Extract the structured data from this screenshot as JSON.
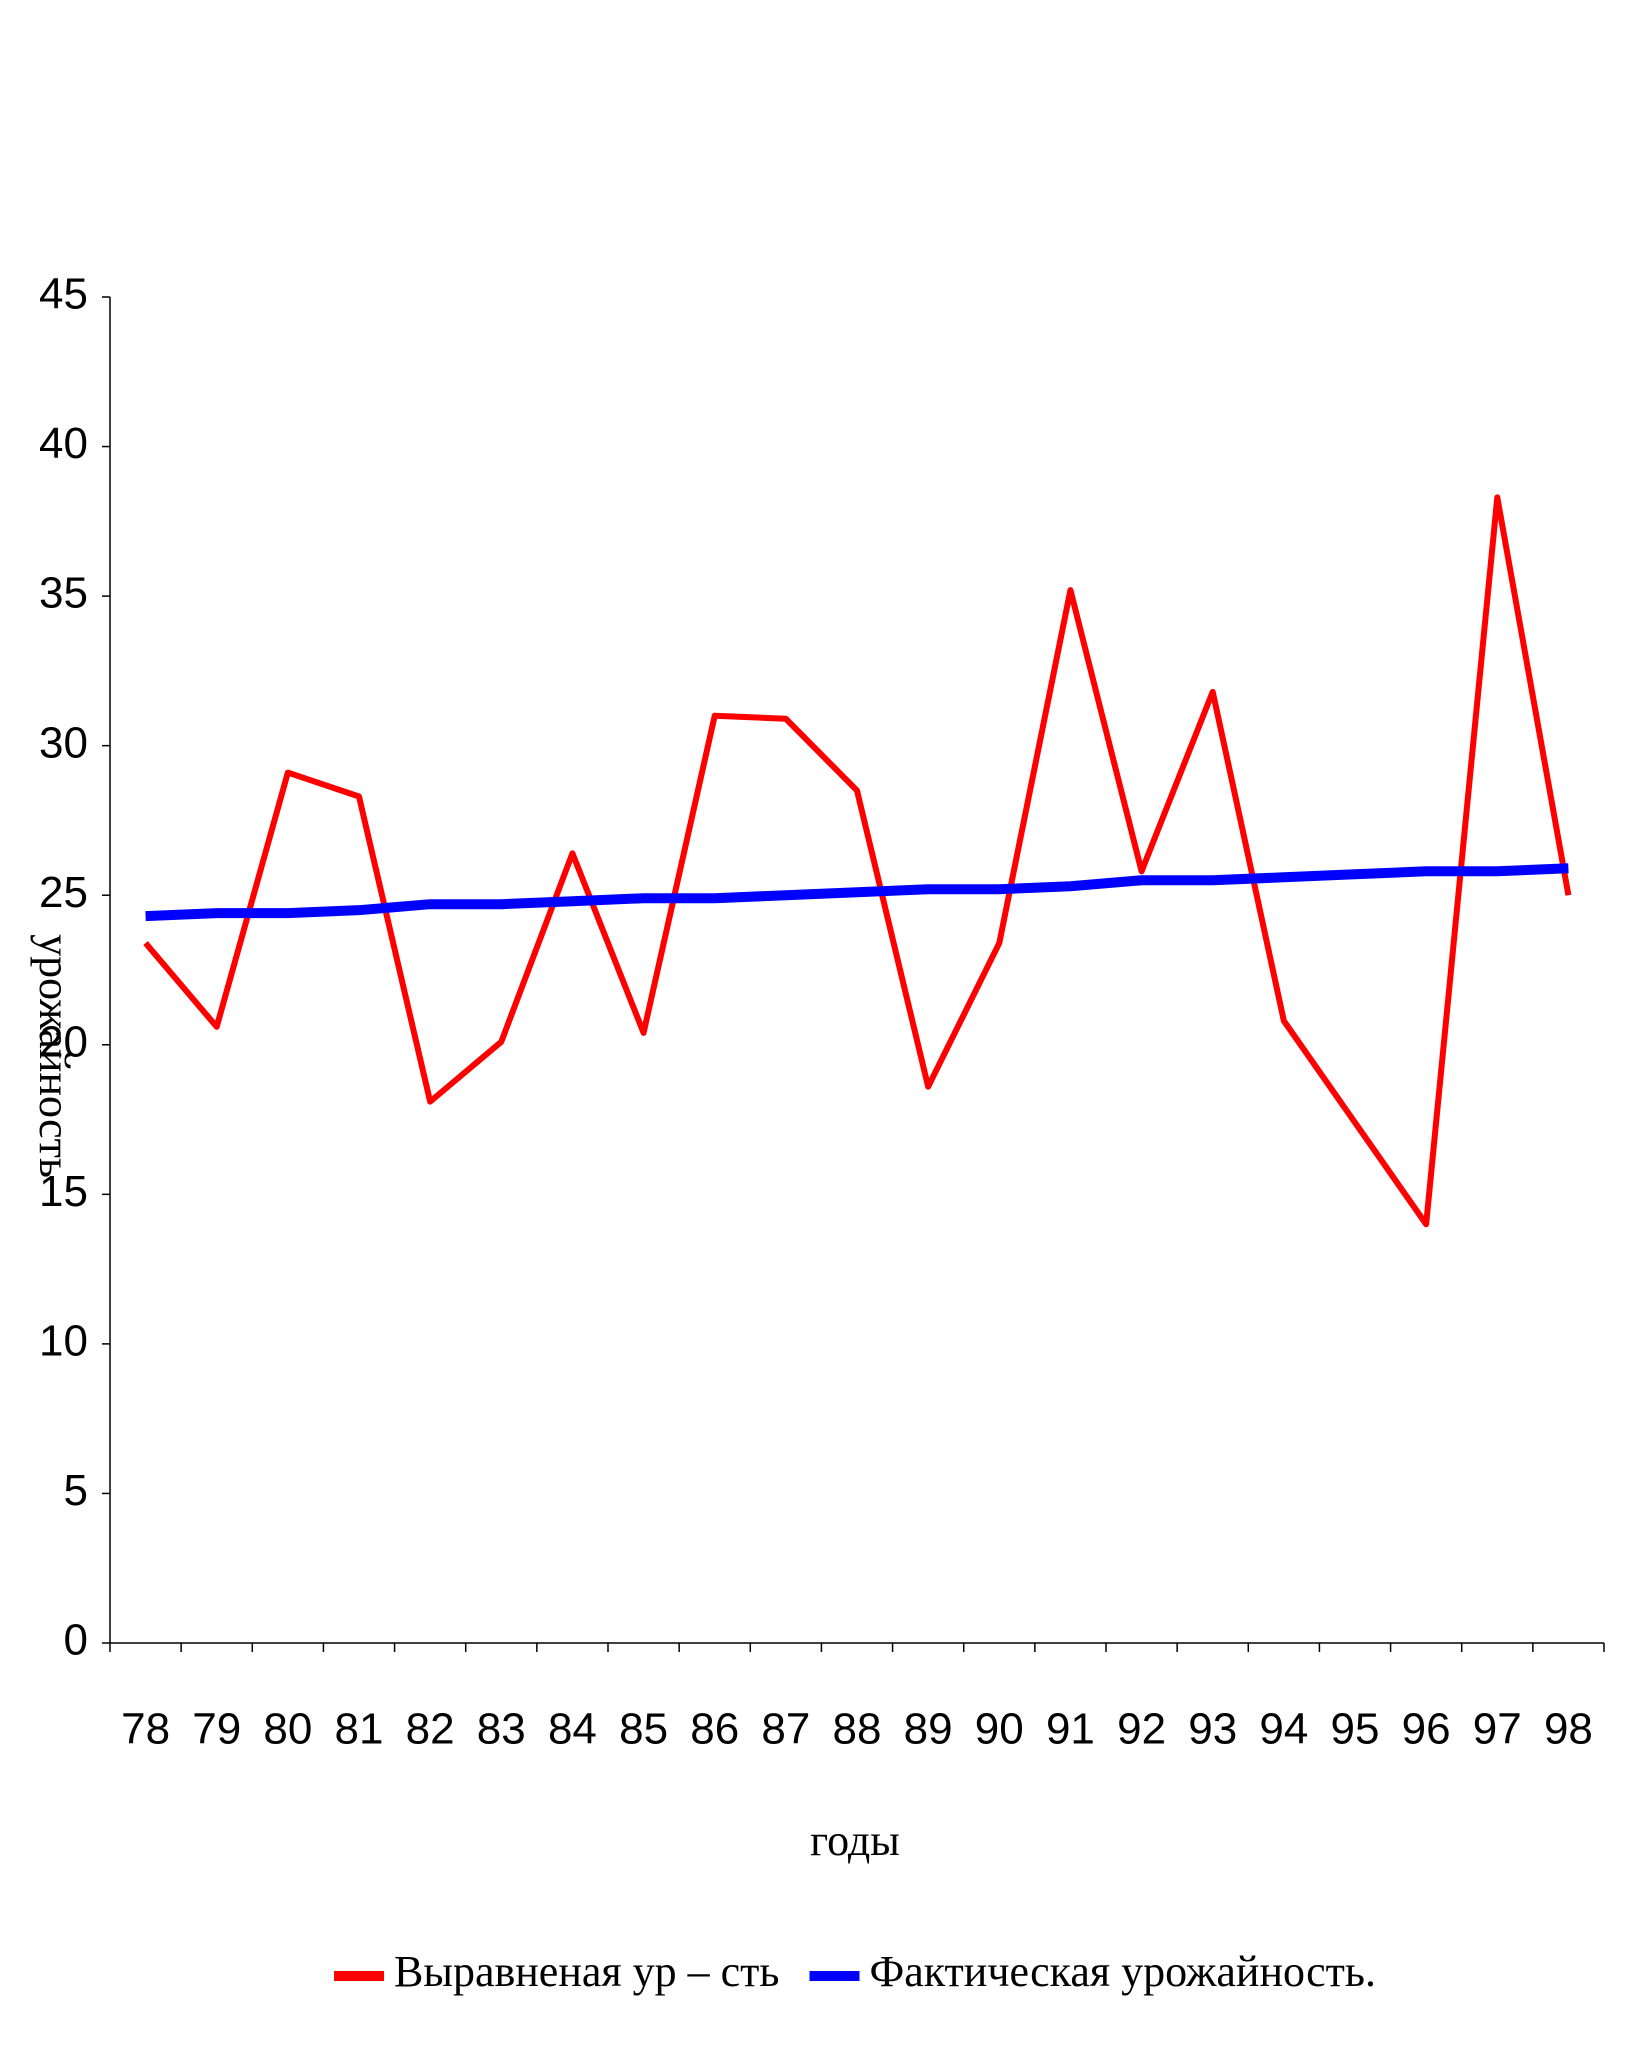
{
  "chart_data": {
    "type": "line",
    "x_label": "годы",
    "y_label": "урожайность",
    "categories": [
      "78",
      "79",
      "80",
      "81",
      "82",
      "83",
      "84",
      "85",
      "86",
      "87",
      "88",
      "89",
      "90",
      "91",
      "92",
      "93",
      "94",
      "95",
      "96",
      "97",
      "98"
    ],
    "series": [
      {
        "name": "Выравненая ур – сть",
        "color": "#ff0000",
        "values": [
          23.4,
          20.6,
          29.1,
          28.3,
          18.1,
          20.1,
          26.4,
          20.4,
          31.0,
          30.9,
          28.5,
          18.6,
          23.4,
          35.2,
          25.8,
          31.8,
          20.8,
          17.4,
          14.0,
          38.3,
          25.0
        ]
      },
      {
        "name": "Фактическая урожайность.",
        "color": "#0000ff",
        "values": [
          24.3,
          24.4,
          24.4,
          24.5,
          24.7,
          24.7,
          24.8,
          24.9,
          24.9,
          25.0,
          25.1,
          25.2,
          25.2,
          25.3,
          25.5,
          25.5,
          25.6,
          25.7,
          25.8,
          25.8,
          25.9
        ]
      }
    ],
    "ylim": [
      0,
      45
    ],
    "yticks": [
      0,
      5,
      10,
      15,
      20,
      25,
      30,
      35,
      40,
      45
    ],
    "legend": "bottom"
  }
}
